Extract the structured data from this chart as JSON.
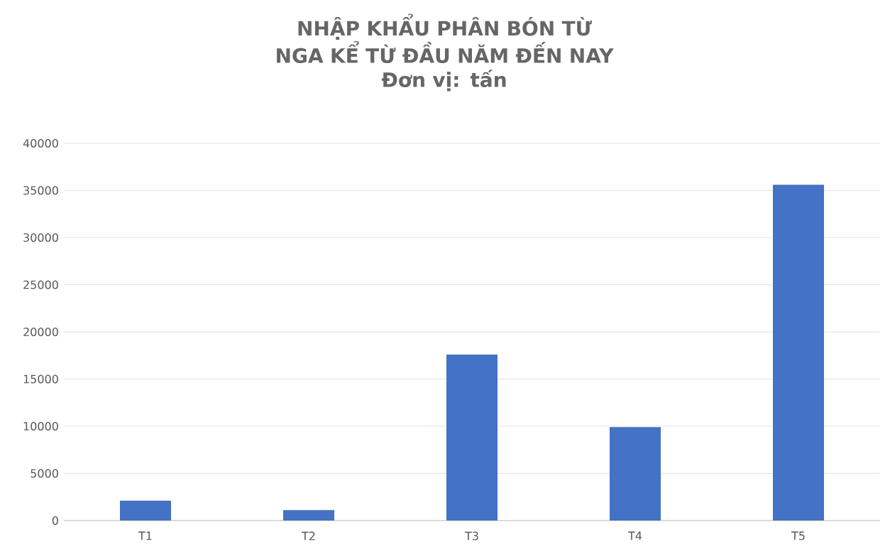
{
  "chart_data": {
    "type": "bar",
    "title": "NHẬP KHẨU PHÂN BÓN TỪ NGA KỂ TỪ ĐẦU NĂM ĐẾN NAY",
    "subtitle": "Đơn vị: tấn",
    "categories": [
      "T1",
      "T2",
      "T3",
      "T4",
      "T5"
    ],
    "values": [
      2100,
      1100,
      17600,
      9900,
      35600
    ],
    "color": "#4472c4",
    "ylim": [
      0,
      40000
    ],
    "yticks": [
      0,
      5000,
      10000,
      15000,
      20000,
      25000,
      30000,
      35000,
      40000
    ],
    "grid": "y"
  }
}
